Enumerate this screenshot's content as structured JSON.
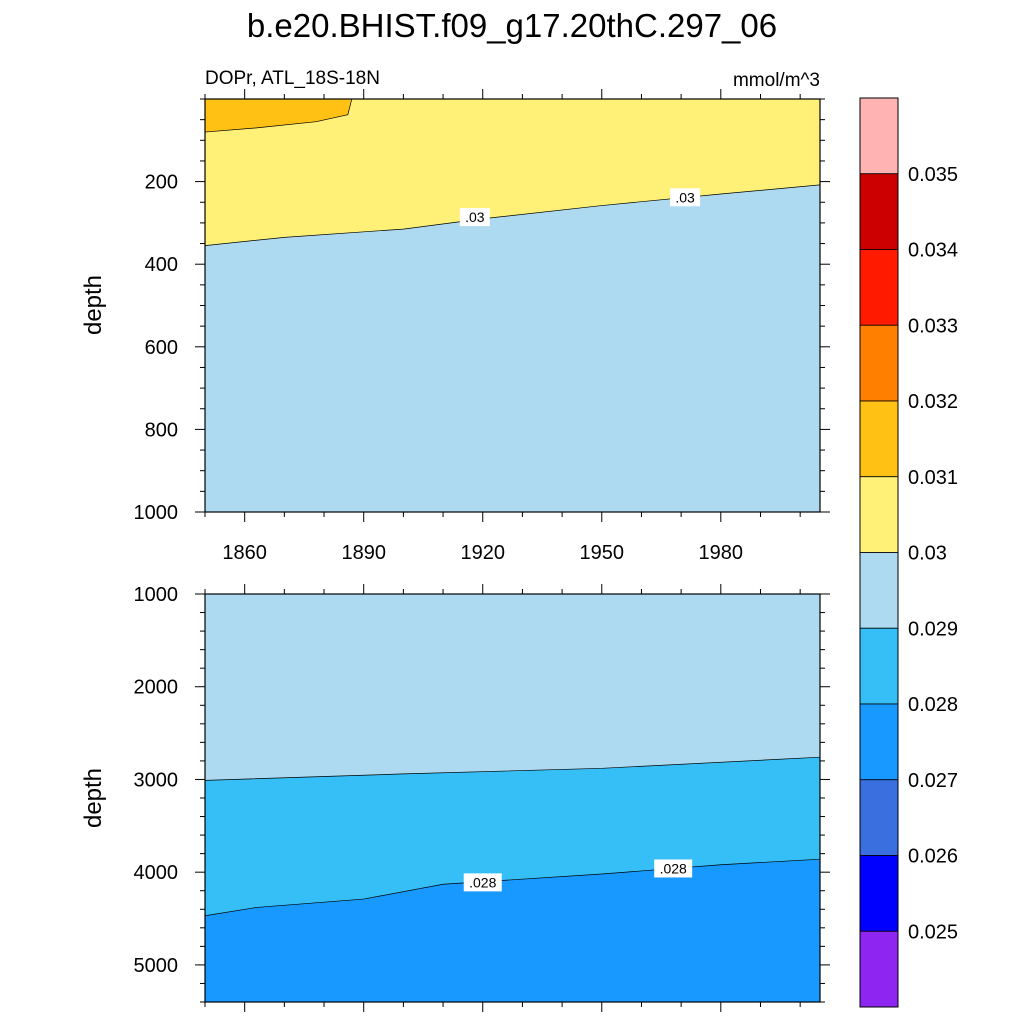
{
  "title": "b.e20.BHIST.f09_g17.20thC.297_06",
  "left_string": "DOPr, ATL_18S-18N",
  "right_string": "mmol/m^3",
  "chart_data": [
    {
      "type": "contour",
      "panel": "upper",
      "ylabel": "depth",
      "x_ticks": [
        1860,
        1890,
        1920,
        1950,
        1980
      ],
      "xlim": [
        1850,
        2005
      ],
      "ylim": [
        0,
        1000
      ],
      "y_reversed": true,
      "y_ticks": [
        200,
        400,
        600,
        800,
        1000
      ],
      "regions": [
        {
          "level_range": [
            0.031,
            0.032
          ],
          "color": "#FFC214",
          "boundary": [
            [
              1850,
              80
            ],
            [
              1863,
              70
            ],
            [
              1878,
              55
            ],
            [
              1886,
              38
            ],
            [
              1887,
              0
            ],
            [
              1850,
              0
            ]
          ]
        },
        {
          "level_range": [
            0.03,
            0.031
          ],
          "color": "#FFF078",
          "boundary_lower": [
            [
              1850,
              355
            ],
            [
              1870,
              335
            ],
            [
              1900,
              315
            ],
            [
              1920,
              290
            ],
            [
              1950,
              258
            ],
            [
              1980,
              230
            ],
            [
              2005,
              208
            ]
          ]
        },
        {
          "level_range": [
            0.029,
            0.03
          ],
          "color": "#ADDAF0",
          "fills": "below 0.03 contour to 1000"
        }
      ],
      "contour_labels": [
        {
          "text": ".03",
          "x": 1918,
          "y": 286
        },
        {
          "text": ".03",
          "x": 1971,
          "y": 238
        }
      ]
    },
    {
      "type": "contour",
      "panel": "lower",
      "ylabel": "depth",
      "xlim": [
        1850,
        2005
      ],
      "ylim": [
        1000,
        5400
      ],
      "y_reversed": true,
      "y_ticks": [
        1000,
        2000,
        3000,
        4000,
        5000
      ],
      "regions": [
        {
          "level_range": [
            0.029,
            0.03
          ],
          "color": "#ADDAF0",
          "boundary_lower": [
            [
              1850,
              3010
            ],
            [
              1900,
              2940
            ],
            [
              1950,
              2880
            ],
            [
              2005,
              2760
            ]
          ]
        },
        {
          "level_range": [
            0.028,
            0.029
          ],
          "color": "#36BFF7",
          "boundary_lower": [
            [
              1850,
              4470
            ],
            [
              1863,
              4380
            ],
            [
              1890,
              4290
            ],
            [
              1910,
              4130
            ],
            [
              1950,
              4020
            ],
            [
              1980,
              3920
            ],
            [
              2005,
              3860
            ]
          ]
        },
        {
          "level_range": [
            0.027,
            0.028
          ],
          "color": "#1799FF",
          "fills": "below 0.028 contour to 5400"
        }
      ],
      "contour_labels": [
        {
          "text": ".028",
          "x": 1920,
          "y": 4110
        },
        {
          "text": ".028",
          "x": 1968,
          "y": 3960
        }
      ]
    }
  ],
  "colorbar": {
    "labels": [
      "0.025",
      "0.026",
      "0.027",
      "0.028",
      "0.029",
      "0.03",
      "0.031",
      "0.032",
      "0.033",
      "0.034",
      "0.035"
    ],
    "colors": [
      "#FFB3B3",
      "#CC0000",
      "#FF1A00",
      "#FF7F00",
      "#FFC214",
      "#FFF078",
      "#ADDAF0",
      "#36BFF7",
      "#1799FF",
      "#3A6FE0",
      "#0000FF",
      "#8E25F0"
    ]
  }
}
